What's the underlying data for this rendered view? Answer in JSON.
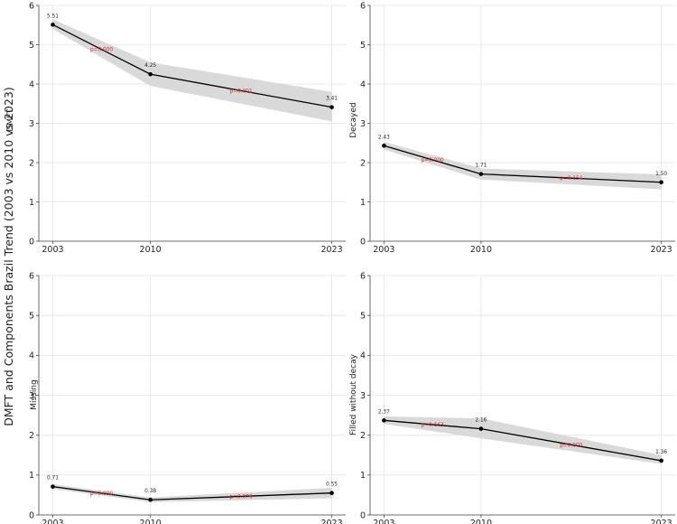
{
  "figure": {
    "suptitle_ylabel": "DMFT and Components Brazil Trend (2003 vs 2010 vs 2023)"
  },
  "chart_data": [
    {
      "type": "line",
      "ylabel": "DMFT",
      "x": [
        2003,
        2010,
        2023
      ],
      "categories": [
        "2003",
        "2010",
        "2023"
      ],
      "values": [
        5.51,
        4.25,
        3.41
      ],
      "value_labels": [
        "5.51",
        "4.25",
        "3.41"
      ],
      "ci_lower": [
        5.4,
        3.95,
        3.05
      ],
      "ci_upper": [
        5.65,
        4.55,
        3.8
      ],
      "p_values": [
        "p=0.000",
        "p=0.001"
      ],
      "xlim": [
        2002,
        2024
      ],
      "ylim": [
        0,
        6
      ],
      "yticks": [
        "0",
        "1",
        "2",
        "3",
        "4",
        "5",
        "6"
      ],
      "grid": true,
      "line_color": "#000000",
      "band_color": "#d9d9d9",
      "pvalue_color": "#d62728"
    },
    {
      "type": "line",
      "ylabel": "Decayed",
      "x": [
        2003,
        2010,
        2023
      ],
      "categories": [
        "2003",
        "2010",
        "2023"
      ],
      "values": [
        2.43,
        1.71,
        1.5
      ],
      "value_labels": [
        "2.43",
        "1.71",
        "1.50"
      ],
      "ci_lower": [
        2.33,
        1.57,
        1.32
      ],
      "ci_upper": [
        2.53,
        1.85,
        1.7
      ],
      "p_values": [
        "p=0.000",
        "p=0.154"
      ],
      "xlim": [
        2002,
        2024
      ],
      "ylim": [
        0,
        6
      ],
      "yticks": [
        "0",
        "1",
        "2",
        "3",
        "4",
        "5",
        "6"
      ],
      "grid": true,
      "line_color": "#000000",
      "band_color": "#d9d9d9",
      "pvalue_color": "#d62728"
    },
    {
      "type": "line",
      "ylabel": "Missing",
      "x": [
        2003,
        2010,
        2023
      ],
      "categories": [
        "2003",
        "2010",
        "2023"
      ],
      "values": [
        0.71,
        0.38,
        0.55
      ],
      "value_labels": [
        "0.71",
        "0.38",
        "0.55"
      ],
      "ci_lower": [
        0.65,
        0.32,
        0.42
      ],
      "ci_upper": [
        0.77,
        0.44,
        0.68
      ],
      "p_values": [
        "p=0.000",
        "p=0.076"
      ],
      "xlim": [
        2002,
        2024
      ],
      "ylim": [
        0,
        6
      ],
      "yticks": [
        "0",
        "1",
        "2",
        "3",
        "4",
        "5",
        "6"
      ],
      "grid": true,
      "line_color": "#000000",
      "band_color": "#d9d9d9",
      "pvalue_color": "#d62728"
    },
    {
      "type": "line",
      "ylabel": "Filled without decay",
      "x": [
        2003,
        2010,
        2023
      ],
      "categories": [
        "2003",
        "2010",
        "2023"
      ],
      "values": [
        2.37,
        2.16,
        1.36
      ],
      "value_labels": [
        "2.37",
        "2.16",
        "1.36"
      ],
      "ci_lower": [
        2.28,
        1.92,
        1.28
      ],
      "ci_upper": [
        2.47,
        2.42,
        1.5
      ],
      "p_values": [
        "p=0.163",
        "p=0.000"
      ],
      "xlim": [
        2002,
        2024
      ],
      "ylim": [
        0,
        6
      ],
      "yticks": [
        "0",
        "1",
        "2",
        "3",
        "4",
        "5",
        "6"
      ],
      "grid": true,
      "line_color": "#000000",
      "band_color": "#d9d9d9",
      "pvalue_color": "#d62728"
    }
  ]
}
